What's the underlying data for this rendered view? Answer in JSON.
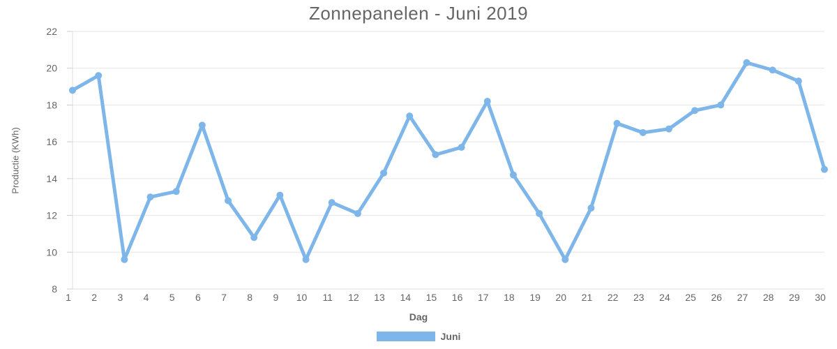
{
  "chart_data": {
    "type": "line",
    "title": "Zonnepanelen - Juni 2019",
    "xlabel": "Dag",
    "ylabel": "Productie (KWh)",
    "ylim": [
      8,
      22
    ],
    "yticks": [
      8,
      10,
      12,
      14,
      16,
      18,
      20,
      22
    ],
    "grid": true,
    "legend_position": "bottom",
    "categories": [
      "1",
      "2",
      "3",
      "4",
      "5",
      "6",
      "7",
      "8",
      "9",
      "10",
      "11",
      "12",
      "13",
      "14",
      "15",
      "16",
      "17",
      "18",
      "19",
      "20",
      "21",
      "22",
      "23",
      "24",
      "25",
      "26",
      "27",
      "28",
      "29",
      "30"
    ],
    "series": [
      {
        "name": "Juni",
        "color": "#7eb6ea",
        "values": [
          18.8,
          19.6,
          9.6,
          13.0,
          13.3,
          16.9,
          12.8,
          10.8,
          13.1,
          9.6,
          12.7,
          12.1,
          14.3,
          17.4,
          15.3,
          15.7,
          18.2,
          14.2,
          12.1,
          9.6,
          12.4,
          17.0,
          16.5,
          16.7,
          17.7,
          18.0,
          20.3,
          19.9,
          19.3,
          14.5
        ]
      }
    ]
  }
}
